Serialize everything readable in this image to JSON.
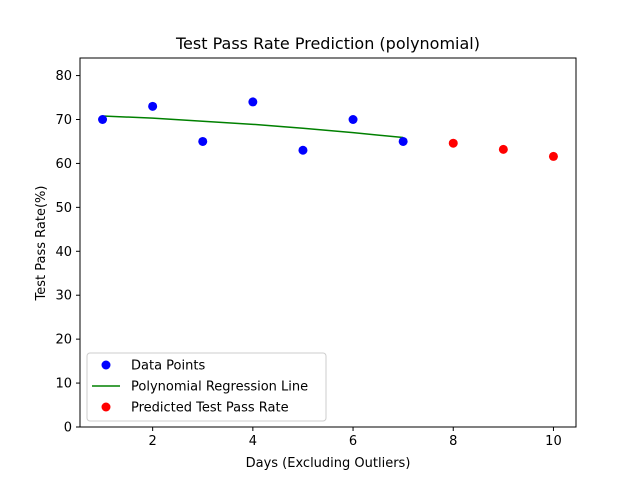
{
  "chart_data": {
    "type": "scatter",
    "title": "Test Pass Rate Prediction (polynomial)",
    "xlabel": "Days (Excluding Outliers)",
    "ylabel": "Test Pass Rate(%)",
    "xlim": [
      0.55,
      10.45
    ],
    "ylim": [
      0,
      84
    ],
    "xticks": [
      2,
      4,
      6,
      8,
      10
    ],
    "yticks": [
      0,
      10,
      20,
      30,
      40,
      50,
      60,
      70,
      80
    ],
    "grid": false,
    "legend_position": "lower-left",
    "series": [
      {
        "name": "Data Points",
        "kind": "scatter",
        "color": "#0000ff",
        "x": [
          1,
          2,
          3,
          4,
          5,
          6,
          7
        ],
        "y": [
          70,
          73,
          65,
          74,
          63,
          70,
          65
        ]
      },
      {
        "name": "Polynomial Regression Line",
        "kind": "line",
        "color": "#008000",
        "x": [
          1,
          2,
          3,
          4,
          5,
          6,
          7
        ],
        "y": [
          70.8,
          70.3,
          69.6,
          68.9,
          68.0,
          67.0,
          65.9
        ]
      },
      {
        "name": "Predicted Test Pass Rate",
        "kind": "scatter",
        "color": "#ff0000",
        "x": [
          8,
          9,
          10
        ],
        "y": [
          64.6,
          63.2,
          61.6
        ]
      }
    ]
  }
}
